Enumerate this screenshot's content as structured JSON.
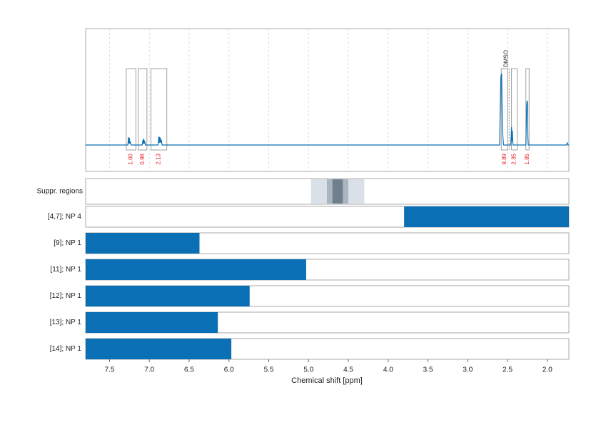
{
  "chart_data": {
    "type": "nmr",
    "xlabel": "Chemical shift [ppm]",
    "xlim": [
      7.8,
      1.73
    ],
    "xticks": [
      7.5,
      {
        "value": 7.0,
        "label": "7.0"
      },
      6.5,
      {
        "value": 6.0,
        "label": "6.0"
      },
      5.5,
      {
        "value": 5.0,
        "label": "5.0"
      },
      4.5,
      {
        "value": 4.0,
        "label": "4.0"
      },
      3.5,
      {
        "value": 3.0,
        "label": "3.0"
      },
      2.5,
      {
        "value": 2.0,
        "label": "2.0"
      }
    ],
    "grid": true,
    "spectrum": {
      "color": "#0a6fb4",
      "ylim": [
        -0.37,
        1.63
      ],
      "x": [
        7.8,
        7.27,
        7.26,
        7.255,
        7.25,
        7.245,
        7.24,
        7.23,
        7.09,
        7.08,
        7.075,
        7.07,
        7.065,
        7.06,
        7.05,
        6.89,
        6.88,
        6.875,
        6.87,
        6.865,
        6.86,
        6.855,
        6.85,
        6.84,
        2.6,
        2.585,
        2.575,
        2.565,
        2.55,
        2.46,
        2.45,
        2.445,
        2.44,
        2.435,
        2.43,
        2.27,
        2.26,
        2.255,
        2.25,
        2.245,
        2.24,
        1.76,
        1.75,
        1.74,
        1.73
      ],
      "values": [
        0,
        0,
        0.11,
        0.02,
        0.1,
        0.02,
        0.05,
        0,
        0,
        0.07,
        0.02,
        0.09,
        0.02,
        0.06,
        0,
        0,
        0.12,
        0.03,
        0.11,
        0.04,
        0.1,
        0.03,
        0.07,
        0,
        0,
        0.95,
        1.0,
        0.2,
        0,
        0,
        0.25,
        0.05,
        0.2,
        0.05,
        0,
        0,
        0.55,
        0.62,
        0.6,
        0.1,
        0,
        0,
        0.03,
        0,
        0
      ]
    },
    "integrals": {
      "ranges": [
        [
          7.29,
          7.17
        ],
        [
          7.14,
          7.03
        ],
        [
          6.98,
          6.78
        ],
        [
          2.58,
          2.5
        ],
        [
          2.45,
          2.38
        ],
        [
          2.27,
          2.23
        ]
      ],
      "values": [
        1.0,
        0.98,
        2.13,
        9.89,
        2.35,
        1.85
      ],
      "value_labels": [
        "1.00",
        "0.98",
        "2.13",
        "9.89",
        "2.35",
        "1.85"
      ],
      "color": "#e8222a"
    },
    "annotation": {
      "text": "DMSO",
      "x": 2.48
    },
    "suppression": {
      "label": "Suppr. regions",
      "regions": [
        [
          4.97,
          4.3
        ],
        [
          4.77,
          4.5
        ],
        [
          4.7,
          4.57
        ]
      ],
      "colors": [
        "#d9e0e7",
        "#a9b6c2",
        "#6f7f8c"
      ]
    },
    "rows": {
      "color": "#0a6fb4",
      "labels": [
        "[4,7]; NP 4",
        "[9]; NP 1",
        "[11]; NP 1",
        "[12]; NP 1",
        "[13]; NP 1",
        "[14]; NP 1"
      ],
      "ranges": [
        [
          3.8,
          1.73
        ],
        [
          7.8,
          6.37
        ],
        [
          7.8,
          5.03
        ],
        [
          7.8,
          5.74
        ],
        [
          7.8,
          6.14
        ],
        [
          7.8,
          5.97
        ]
      ]
    }
  }
}
